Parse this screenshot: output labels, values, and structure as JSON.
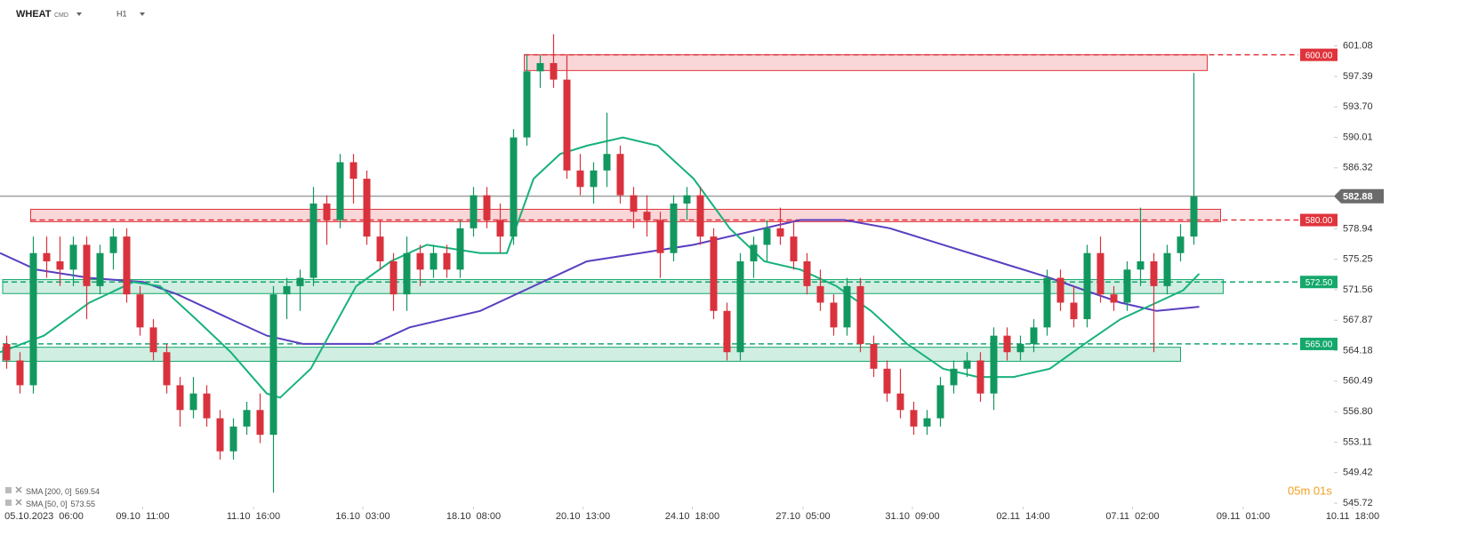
{
  "header": {
    "symbol": "WHEAT",
    "market": "CMD",
    "interval": "H1"
  },
  "timer": "05m 01s",
  "chart_data": {
    "type": "candlestick",
    "up_color": "#12985f",
    "down_color": "#d9323d",
    "ohlc": [
      [
        565,
        566,
        562,
        563
      ],
      [
        563,
        564,
        559,
        560
      ],
      [
        560,
        578,
        559,
        576
      ],
      [
        576,
        578,
        573,
        575
      ],
      [
        575,
        578,
        572,
        574
      ],
      [
        574,
        578,
        572,
        577
      ],
      [
        577,
        578,
        568,
        572
      ],
      [
        572,
        577,
        571,
        576
      ],
      [
        576,
        579,
        574,
        578
      ],
      [
        578,
        579,
        570,
        571
      ],
      [
        571,
        572,
        566,
        567
      ],
      [
        567,
        568,
        563,
        564
      ],
      [
        564,
        565,
        559,
        560
      ],
      [
        560,
        561,
        555,
        557
      ],
      [
        557,
        561,
        556,
        559
      ],
      [
        559,
        560,
        555,
        556
      ],
      [
        556,
        557,
        551,
        552
      ],
      [
        552,
        556,
        551,
        555
      ],
      [
        555,
        558,
        554,
        557
      ],
      [
        557,
        559,
        553,
        554
      ],
      [
        554,
        572,
        547,
        571
      ],
      [
        571,
        573,
        568,
        572
      ],
      [
        572,
        574,
        569,
        573
      ],
      [
        573,
        584,
        572,
        582
      ],
      [
        582,
        583,
        577,
        580
      ],
      [
        580,
        588,
        579,
        587
      ],
      [
        587,
        588,
        582,
        585
      ],
      [
        585,
        586,
        577,
        578
      ],
      [
        578,
        580,
        574,
        575
      ],
      [
        575,
        576,
        569,
        571
      ],
      [
        571,
        578,
        569,
        576
      ],
      [
        576,
        577,
        572,
        574
      ],
      [
        574,
        577,
        573,
        576
      ],
      [
        576,
        577,
        573,
        574
      ],
      [
        574,
        580,
        573,
        579
      ],
      [
        579,
        584,
        578,
        583
      ],
      [
        583,
        584,
        579,
        580
      ],
      [
        580,
        582,
        576,
        578
      ],
      [
        578,
        591,
        577,
        590
      ],
      [
        590,
        600,
        589,
        598
      ],
      [
        598,
        600,
        596,
        599
      ],
      [
        599,
        602.5,
        596,
        597
      ],
      [
        597,
        600,
        585,
        586
      ],
      [
        586,
        588,
        583,
        584
      ],
      [
        584,
        587,
        582,
        586
      ],
      [
        586,
        593,
        584,
        588
      ],
      [
        588,
        589,
        582,
        583
      ],
      [
        583,
        584,
        579,
        581
      ],
      [
        581,
        583,
        578,
        580
      ],
      [
        580,
        581,
        573,
        576
      ],
      [
        576,
        583,
        575,
        582
      ],
      [
        582,
        584,
        580,
        583
      ],
      [
        583,
        584,
        577,
        578
      ],
      [
        578,
        579,
        568,
        569
      ],
      [
        569,
        570,
        563,
        564
      ],
      [
        564,
        576,
        563,
        575
      ],
      [
        575,
        578,
        573,
        577
      ],
      [
        577,
        580,
        575,
        579
      ],
      [
        579,
        581.5,
        577,
        578
      ],
      [
        578,
        580,
        574,
        575
      ],
      [
        575,
        576,
        571,
        572
      ],
      [
        572,
        574,
        569,
        570
      ],
      [
        570,
        571,
        566,
        567
      ],
      [
        567,
        573,
        566,
        572
      ],
      [
        572,
        573,
        564,
        565
      ],
      [
        565,
        566,
        561,
        562
      ],
      [
        562,
        563,
        558,
        559
      ],
      [
        559,
        562,
        556,
        557
      ],
      [
        557,
        558,
        554,
        555
      ],
      [
        555,
        557,
        554,
        556
      ],
      [
        556,
        561,
        555,
        560
      ],
      [
        560,
        563,
        559,
        562
      ],
      [
        562,
        564,
        561,
        563
      ],
      [
        563,
        564,
        558,
        559
      ],
      [
        559,
        567,
        557,
        566
      ],
      [
        566,
        567,
        563,
        564
      ],
      [
        564,
        566,
        563,
        565
      ],
      [
        565,
        568,
        564,
        567
      ],
      [
        567,
        574,
        566,
        573
      ],
      [
        573,
        574,
        569,
        570
      ],
      [
        570,
        572,
        567,
        568
      ],
      [
        568,
        577,
        567,
        576
      ],
      [
        576,
        578,
        570,
        571
      ],
      [
        571,
        572,
        569,
        570
      ],
      [
        570,
        575,
        569,
        574
      ],
      [
        574,
        581.5,
        572,
        575
      ],
      [
        575,
        576,
        564,
        572
      ],
      [
        572,
        577,
        571,
        576
      ],
      [
        576,
        579.5,
        575,
        578
      ],
      [
        578,
        597.8,
        577,
        582.88
      ]
    ],
    "xlim": [
      -0.5,
      103.5
    ],
    "xticks": [
      {
        "value": 2.8,
        "label": "05.10.2023  06:00"
      },
      {
        "value": 10.2,
        "label": "09.10  11:00"
      },
      {
        "value": 18.5,
        "label": "11.10  16:00"
      },
      {
        "value": 26.7,
        "label": "16.10  03:00"
      },
      {
        "value": 35,
        "label": "18.10  08:00"
      },
      {
        "value": 43.2,
        "label": "20.10  13:00"
      },
      {
        "value": 51.4,
        "label": "24.10  18:00"
      },
      {
        "value": 59.7,
        "label": "27.10  05:00"
      },
      {
        "value": 67.9,
        "label": "31.10  09:00"
      },
      {
        "value": 76.2,
        "label": "02.11  14:00"
      },
      {
        "value": 84.4,
        "label": "07.11  02:00"
      },
      {
        "value": 92.7,
        "label": "09.11  01:00"
      },
      {
        "value": 100.9,
        "label": "10.11  18:00"
      }
    ],
    "ylim": [
      545.3,
      606.1
    ],
    "yticks": [
      601.08,
      597.39,
      {
        "value": 593.7,
        "label": "593.70"
      },
      590.01,
      586.32,
      578.94,
      575.25,
      571.56,
      567.87,
      564.18,
      560.49,
      {
        "value": 556.8,
        "label": "556.80"
      },
      553.11,
      549.42,
      545.72
    ],
    "grid": false,
    "series": [
      {
        "name": "SMA [200, 0]",
        "last_value": 569.54,
        "color": "#5a3fc0",
        "x": [
          -0.5,
          2.2,
          6.2,
          10.2,
          12.8,
          16.8,
          19.5,
          22.2,
          24.8,
          27.5,
          30.2,
          35.5,
          39.5,
          43.5,
          47.5,
          51.5,
          56.8,
          59.5,
          62.8,
          66.2,
          70.2,
          74.2,
          78.2,
          80.8,
          83.5,
          86.2,
          89.4
        ],
        "values": [
          576,
          574,
          573,
          572.5,
          571,
          568,
          566,
          565,
          565,
          565,
          567,
          569,
          572,
          575,
          576,
          577,
          579,
          580,
          580,
          579,
          577,
          575,
          573,
          571.5,
          570,
          569,
          569.5
        ]
      },
      {
        "name": "SMA [50, 0]",
        "last_value": 573.55,
        "color": "#17b27a",
        "x": [
          -0.5,
          2.8,
          6.2,
          9.5,
          11.5,
          14.2,
          16.8,
          19.5,
          20.5,
          22.8,
          26.2,
          28.8,
          31.5,
          35.5,
          37.5,
          39.5,
          41.5,
          43.5,
          46.2,
          48.8,
          51.5,
          54.2,
          56.8,
          59.5,
          62.2,
          64.8,
          67.5,
          70.2,
          72.8,
          75.5,
          78.2,
          80.8,
          83.5,
          86.2,
          88.2,
          89.4
        ],
        "values": [
          564,
          566,
          570,
          572.5,
          572,
          568,
          564,
          559,
          558.5,
          562,
          572,
          575,
          577,
          576,
          576,
          585,
          588,
          589,
          590,
          589,
          585,
          579,
          575,
          574,
          572,
          569,
          565,
          562,
          561,
          561,
          562,
          565,
          568,
          570,
          571.5,
          573.5
        ]
      }
    ],
    "levels": [
      {
        "value": 600,
        "label": "600.00",
        "color": "#e0343c",
        "zone_x": [
          38.8,
          90
        ],
        "zone_y": [
          598.1,
          600
        ]
      },
      {
        "value": 580,
        "label": "580.00",
        "color": "#e0343c",
        "zone_x": [
          1.8,
          91
        ],
        "zone_y": [
          579.8,
          581.3
        ]
      },
      {
        "value": 572.5,
        "label": "572.50",
        "color": "#14a86c",
        "zone_x": [
          -0.3,
          91.2
        ],
        "zone_y": [
          571.1,
          572.8
        ]
      },
      {
        "value": 565,
        "label": "565.00",
        "color": "#14a86c",
        "zone_x": [
          -0.3,
          88
        ],
        "zone_y": [
          562.9,
          564.6
        ]
      }
    ],
    "current_price": 582.88
  }
}
